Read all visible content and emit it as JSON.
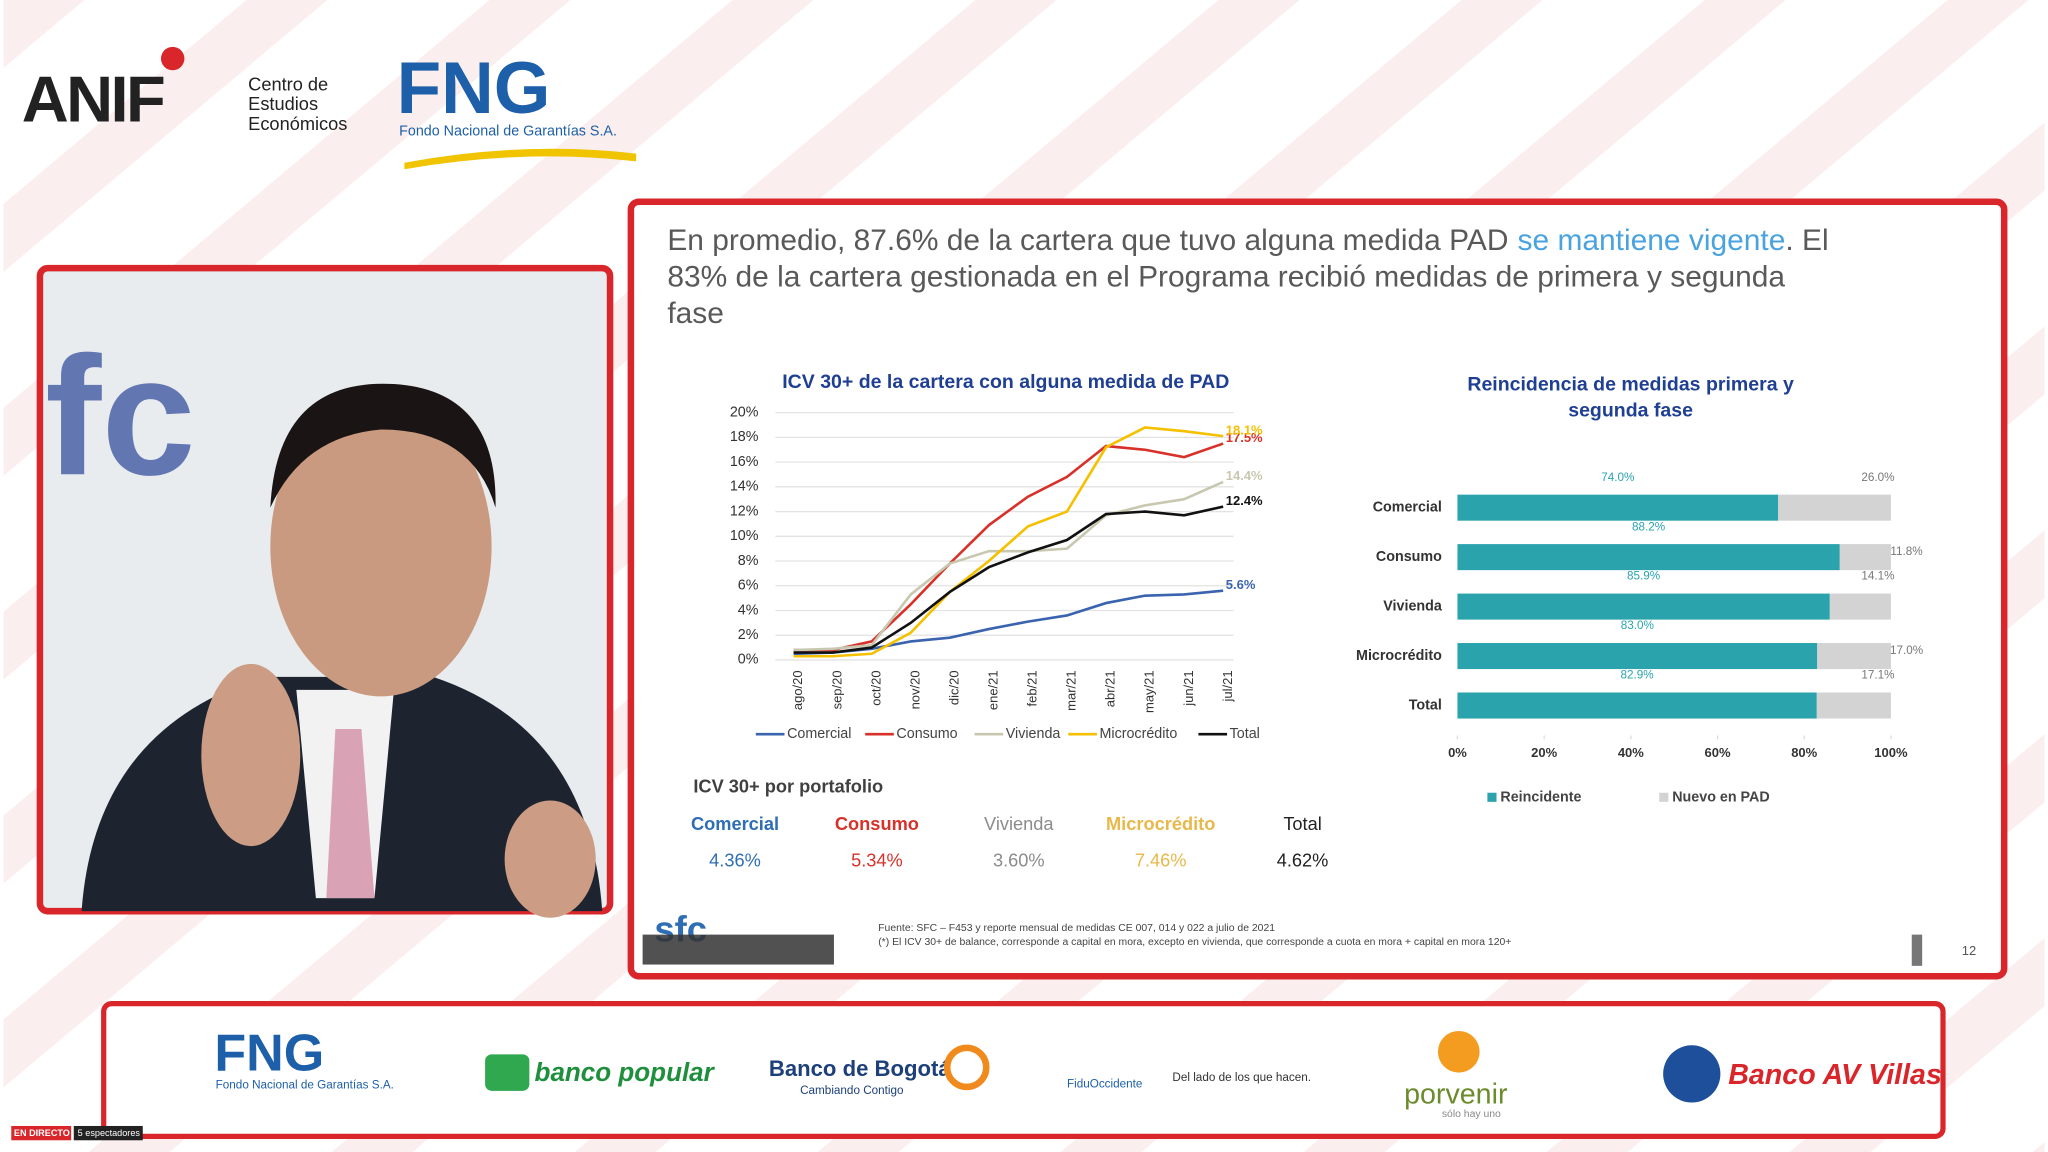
{
  "header": {
    "anif": "ANIF",
    "anif_sub": [
      "Centro de",
      "Estudios",
      "Económicos"
    ],
    "fng": "FNG",
    "fng_sub": "Fondo Nacional de Garantías S.A."
  },
  "slide": {
    "title": [
      "En promedio, 87.6% de la cartera que tuvo alguna medida PAD",
      "se mantiene vigente",
      ". El",
      "83% de la cartera gestionada en el Programa recibió medidas de primera y segunda",
      "fase"
    ],
    "portfolio": {
      "title": "ICV 30+ por portafolio",
      "headers": [
        "Comercial",
        "Consumo",
        "Vivienda",
        "Microcrédito",
        "Total"
      ],
      "values": [
        "4.36%",
        "5.34%",
        "3.60%",
        "7.46%",
        "4.62%"
      ],
      "colors": [
        "#2f6db5",
        "#d7312a",
        "#8c8c8c",
        "#e8b84a",
        "#222222"
      ]
    },
    "source": [
      "Fuente:  SFC – F453 y reporte mensual de medidas CE 007, 014 y 022 a julio de 2021",
      "(*) El ICV 30+ de balance, corresponde a capital en mora, excepto en vivienda, que corresponde a cuota en mora  + capital en mora 120+"
    ],
    "logo": "sfc",
    "page": "12"
  },
  "chart_data": [
    {
      "type": "line",
      "title": "ICV 30+ de la cartera con alguna medida de  PAD",
      "categories": [
        "ago/20",
        "sep/20",
        "oct/20",
        "nov/20",
        "dic/20",
        "ene/21",
        "feb/21",
        "mar/21",
        "abr/21",
        "may/21",
        "jun/21",
        "jul/21"
      ],
      "ylim": [
        0,
        20
      ],
      "yticks": [
        {
          "value": 0,
          "label": "0%"
        },
        {
          "value": 2,
          "label": "2%"
        },
        {
          "value": 4,
          "label": "4%"
        },
        {
          "value": 6,
          "label": "6%"
        },
        {
          "value": 8,
          "label": "8%"
        },
        {
          "value": 10,
          "label": "10%"
        },
        {
          "value": 12,
          "label": "12%"
        },
        {
          "value": 14,
          "label": "14%"
        },
        {
          "value": 16,
          "label": "16%"
        },
        {
          "value": 18,
          "label": "18%"
        },
        {
          "value": 20,
          "label": "20%"
        }
      ],
      "series": [
        {
          "name": "Comercial",
          "color": "#3a63b0",
          "values": [
            0.5,
            0.6,
            0.9,
            1.5,
            1.8,
            2.5,
            3.1,
            3.6,
            4.6,
            5.2,
            5.3,
            5.6
          ],
          "value_labels": [
            null,
            null,
            null,
            null,
            null,
            null,
            null,
            null,
            null,
            null,
            null,
            "5.6%"
          ]
        },
        {
          "name": "Consumo",
          "color": "#d7312a",
          "values": [
            0.8,
            0.8,
            1.5,
            4.5,
            7.8,
            10.9,
            13.2,
            14.8,
            17.3,
            17.0,
            16.4,
            17.5
          ],
          "value_labels": [
            null,
            null,
            null,
            null,
            null,
            null,
            null,
            null,
            null,
            null,
            null,
            "17.5%"
          ]
        },
        {
          "name": "Vivienda",
          "color": "#c8c8b0",
          "values": [
            0.8,
            0.9,
            1.2,
            5.3,
            7.8,
            8.8,
            8.8,
            9.0,
            11.7,
            12.5,
            13.0,
            14.4
          ],
          "value_labels": [
            null,
            null,
            null,
            null,
            null,
            null,
            null,
            null,
            null,
            null,
            null,
            "14.4%"
          ]
        },
        {
          "name": "Microcrédito",
          "color": "#f5c000",
          "values": [
            0.3,
            0.3,
            0.5,
            2.2,
            5.5,
            8.0,
            10.8,
            12.0,
            17.2,
            18.8,
            18.5,
            18.1
          ],
          "value_labels": [
            null,
            null,
            null,
            null,
            null,
            null,
            null,
            null,
            null,
            null,
            null,
            "18.1%"
          ]
        },
        {
          "name": "Total",
          "color": "#111111",
          "values": [
            0.6,
            0.6,
            1.0,
            3.0,
            5.5,
            7.5,
            8.7,
            9.7,
            11.8,
            12.0,
            11.7,
            12.4
          ],
          "value_labels": [
            null,
            null,
            null,
            null,
            null,
            null,
            null,
            null,
            null,
            null,
            null,
            "12.4%"
          ]
        }
      ]
    },
    {
      "type": "bar",
      "orientation": "horizontal",
      "stacked": true,
      "title": "Reincidencia de medidas primera y segunda fase",
      "categories": [
        "Comercial",
        "Consumo",
        "Vivienda",
        "Microcrédito",
        "Total"
      ],
      "xlim": [
        0,
        100
      ],
      "xticks": [
        {
          "value": 0,
          "label": "0%"
        },
        {
          "value": 20,
          "label": "20%"
        },
        {
          "value": 40,
          "label": "40%"
        },
        {
          "value": 60,
          "label": "60%"
        },
        {
          "value": 80,
          "label": "80%"
        },
        {
          "value": 100,
          "label": "100%"
        }
      ],
      "series": [
        {
          "name": "Reincidente",
          "color": "#2aa3ad",
          "values": [
            74.0,
            88.2,
            85.9,
            83.0,
            82.9
          ],
          "value_labels": [
            "74.0%",
            "88.2%",
            "85.9%",
            "83.0%",
            "82.9%"
          ]
        },
        {
          "name": "Nuevo en PAD",
          "color": "#d3d3d3",
          "values": [
            26.0,
            11.8,
            14.1,
            17.0,
            17.1
          ],
          "value_labels": [
            "26.0%",
            "11.8%",
            "14.1%",
            "17.0%",
            "17.1%"
          ]
        }
      ]
    }
  ],
  "footer": {
    "fng": "FNG",
    "fng_sub": "Fondo Nacional de Garantías S.A.",
    "popular": "banco popular",
    "bogota": "Banco de Bogotá",
    "bogota_sub": "Cambiando Contigo",
    "fidu": "FiduOccidente",
    "fidu_sub": "Del lado de los que hacen.",
    "porvenir": "porvenir",
    "porvenir_sub": "sólo hay uno",
    "avvillas": "Banco AV Villas"
  },
  "live": {
    "badge": "EN DIRECTO",
    "viewers": "5 espectadores"
  }
}
